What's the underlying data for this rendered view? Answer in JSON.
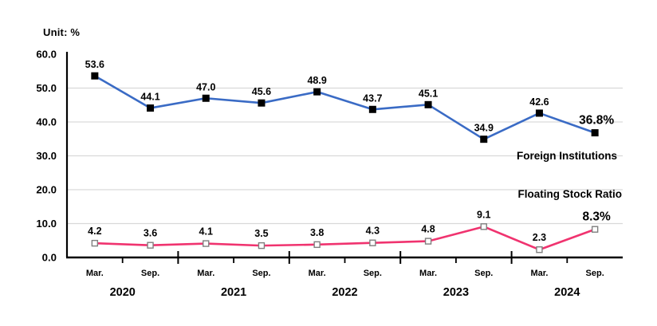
{
  "unit_label": "Unit: %",
  "chart_data": {
    "type": "line",
    "title": "",
    "unit": "%",
    "categories": [
      "Mar.",
      "Sep.",
      "Mar.",
      "Sep.",
      "Mar.",
      "Sep.",
      "Mar.",
      "Sep.",
      "Mar.",
      "Sep."
    ],
    "year_groups": [
      "2020",
      "2021",
      "2022",
      "2023",
      "2024"
    ],
    "series": [
      {
        "name": "Foreign Institutions",
        "values": [
          53.6,
          44.1,
          47.0,
          45.6,
          48.9,
          43.7,
          45.1,
          34.9,
          42.6,
          36.8
        ],
        "point_labels": [
          "53.6",
          "44.1",
          "47.0",
          "45.6",
          "48.9",
          "43.7",
          "45.1",
          "34.9",
          "42.6",
          "36.8%"
        ],
        "color": "#3A6BC5",
        "marker": "filled-black-square",
        "marker_fill": "#000000"
      },
      {
        "name": "Floating Stock Ratio",
        "values": [
          4.2,
          3.6,
          4.1,
          3.5,
          3.8,
          4.3,
          4.8,
          9.1,
          2.3,
          8.3
        ],
        "point_labels": [
          "4.2",
          "3.6",
          "4.1",
          "3.5",
          "3.8",
          "4.3",
          "4.8",
          "9.1",
          "2.3",
          "8.3%"
        ],
        "color": "#F0336F",
        "marker": "open-white-square",
        "marker_fill": "#ffffff",
        "marker_stroke": "#7f7f7f"
      }
    ],
    "ylim": [
      0,
      60
    ],
    "ytick_step": 10,
    "ytick_labels": [
      "0.0",
      "10.0",
      "20.0",
      "30.0",
      "40.0",
      "50.0",
      "60.0"
    ],
    "grid": true,
    "gridline_color": "#D9D9D9",
    "axis_color": "#000000",
    "label_color": "#000000",
    "legend_position": "inline-right"
  }
}
